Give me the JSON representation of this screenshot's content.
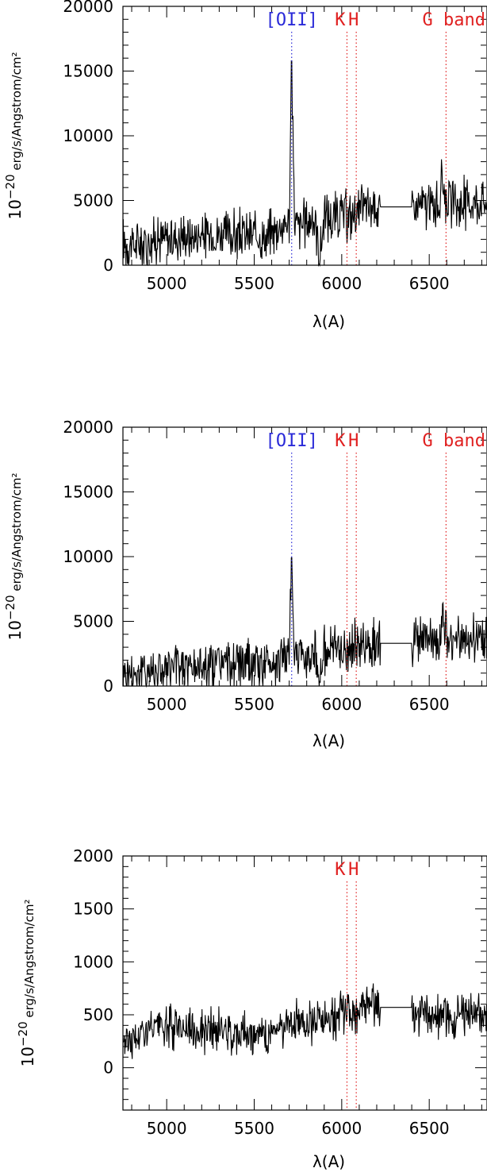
{
  "chart_data": [
    {
      "type": "line",
      "xlabel": "λ(A)",
      "ylabel_prefix": "10",
      "ylabel_exp": "−20",
      "ylabel_units": "erg/s/Angstrom/cm²",
      "xlim": [
        4750,
        6830
      ],
      "ylim": [
        0,
        20000
      ],
      "xticks": [
        5000,
        5500,
        6000,
        6500
      ],
      "xtick_labels": [
        "5000",
        "5500",
        "6000",
        "6500"
      ],
      "yticks": [
        0,
        5000,
        10000,
        15000,
        20000
      ],
      "ytick_labels": [
        "0",
        "5000",
        "10000",
        "15000",
        "20000"
      ],
      "x_minor": 100,
      "y_minor": 1000,
      "grid": false,
      "lines": [
        {
          "label": "[OII]",
          "x": 5714,
          "color": "#2a2ad8"
        },
        {
          "label": "K",
          "x": 6030,
          "color": "#e02020"
        },
        {
          "label": "H",
          "x": 6083,
          "color": "#e02020"
        },
        {
          "label": "G band",
          "x": 6596,
          "color": "#e02020"
        }
      ],
      "series": [
        {
          "x": [
            4750,
            4800,
            4850,
            4900,
            4950,
            5000,
            5050,
            5100,
            5150,
            5200,
            5250,
            5300,
            5350,
            5400,
            5450,
            5500,
            5540,
            5560,
            5600,
            5640,
            5680,
            5700,
            5714,
            5730,
            5760,
            5800,
            5850,
            5875,
            5900,
            5950,
            6000,
            6050,
            6100,
            6150,
            6200,
            6220,
            6400,
            6420,
            6450,
            6500,
            6550,
            6580,
            6600,
            6650,
            6700,
            6750,
            6800,
            6830
          ],
          "y": [
            1800,
            1500,
            1700,
            1900,
            2100,
            2000,
            2200,
            2300,
            2100,
            2400,
            2200,
            2500,
            2300,
            2400,
            2200,
            2300,
            2100,
            2000,
            2500,
            3000,
            3200,
            3400,
            15800,
            3300,
            3000,
            3400,
            3600,
            400,
            3800,
            3600,
            3900,
            3700,
            4200,
            4500,
            4500,
            4500,
            4500,
            4300,
            4700,
            4500,
            4600,
            6500,
            4800,
            4600,
            4800,
            4900,
            5000,
            4800
          ]
        }
      ]
    },
    {
      "type": "line",
      "xlabel": "λ(A)",
      "ylabel_prefix": "10",
      "ylabel_exp": "−20",
      "ylabel_units": "erg/s/Angstrom/cm²",
      "xlim": [
        4750,
        6830
      ],
      "ylim": [
        0,
        20000
      ],
      "xticks": [
        5000,
        5500,
        6000,
        6500
      ],
      "xtick_labels": [
        "5000",
        "5500",
        "6000",
        "6500"
      ],
      "yticks": [
        0,
        5000,
        10000,
        15000,
        20000
      ],
      "ytick_labels": [
        "0",
        "5000",
        "10000",
        "15000",
        "20000"
      ],
      "x_minor": 100,
      "y_minor": 1000,
      "grid": false,
      "lines": [
        {
          "label": "[OII]",
          "x": 5714,
          "color": "#2a2ad8"
        },
        {
          "label": "K",
          "x": 6030,
          "color": "#e02020"
        },
        {
          "label": "H",
          "x": 6083,
          "color": "#e02020"
        },
        {
          "label": "G band",
          "x": 6596,
          "color": "#e02020"
        }
      ],
      "series": [
        {
          "x": [
            4750,
            4800,
            4850,
            4900,
            4950,
            5000,
            5050,
            5100,
            5150,
            5200,
            5250,
            5300,
            5350,
            5400,
            5450,
            5500,
            5540,
            5560,
            5600,
            5640,
            5680,
            5700,
            5714,
            5730,
            5760,
            5800,
            5850,
            5875,
            5900,
            5950,
            6000,
            6050,
            6100,
            6150,
            6200,
            6220,
            6400,
            6420,
            6450,
            6500,
            6550,
            6580,
            6600,
            6650,
            6700,
            6750,
            6800,
            6830
          ],
          "y": [
            1200,
            1000,
            1100,
            1300,
            1400,
            1300,
            1500,
            1600,
            1400,
            1700,
            1500,
            1800,
            1600,
            1700,
            1500,
            1600,
            1500,
            1400,
            1800,
            2200,
            2300,
            2400,
            9900,
            2400,
            2200,
            2500,
            2700,
            200,
            2800,
            2700,
            2900,
            2800,
            3100,
            3300,
            3300,
            3300,
            3300,
            3200,
            3500,
            3400,
            3500,
            5000,
            3600,
            3500,
            3600,
            3700,
            3800,
            3600
          ]
        }
      ]
    },
    {
      "type": "line",
      "xlabel": "λ(A)",
      "ylabel_prefix": "10",
      "ylabel_exp": "−20",
      "ylabel_units": "erg/s/Angstrom/cm²",
      "xlim": [
        4750,
        6830
      ],
      "ylim": [
        -400,
        2000
      ],
      "xticks": [
        5000,
        5500,
        6000,
        6500
      ],
      "xtick_labels": [
        "5000",
        "5500",
        "6000",
        "6500"
      ],
      "yticks": [
        0,
        500,
        1000,
        1500,
        2000
      ],
      "ytick_labels": [
        "0",
        "500",
        "1000",
        "1500",
        "2000"
      ],
      "x_minor": 100,
      "y_minor": 100,
      "grid": false,
      "lines": [
        {
          "label": "K",
          "x": 6030,
          "color": "#e02020"
        },
        {
          "label": "H",
          "x": 6083,
          "color": "#e02020"
        }
      ],
      "series": [
        {
          "x": [
            4750,
            4800,
            4850,
            4900,
            4950,
            5000,
            5050,
            5100,
            5150,
            5200,
            5250,
            5300,
            5350,
            5400,
            5450,
            5500,
            5540,
            5560,
            5600,
            5640,
            5680,
            5700,
            5750,
            5800,
            5850,
            5900,
            5950,
            6000,
            6050,
            6100,
            6150,
            6200,
            6220,
            6400,
            6420,
            6450,
            6500,
            6550,
            6580,
            6600,
            6650,
            6700,
            6750,
            6800,
            6830
          ],
          "y": [
            300,
            250,
            320,
            350,
            380,
            360,
            400,
            380,
            350,
            370,
            340,
            360,
            330,
            350,
            320,
            340,
            300,
            260,
            360,
            380,
            400,
            420,
            430,
            440,
            460,
            480,
            470,
            520,
            500,
            560,
            570,
            580,
            570,
            470,
            490,
            500,
            480,
            460,
            470,
            480,
            450,
            500,
            510,
            520,
            500
          ]
        }
      ]
    }
  ]
}
